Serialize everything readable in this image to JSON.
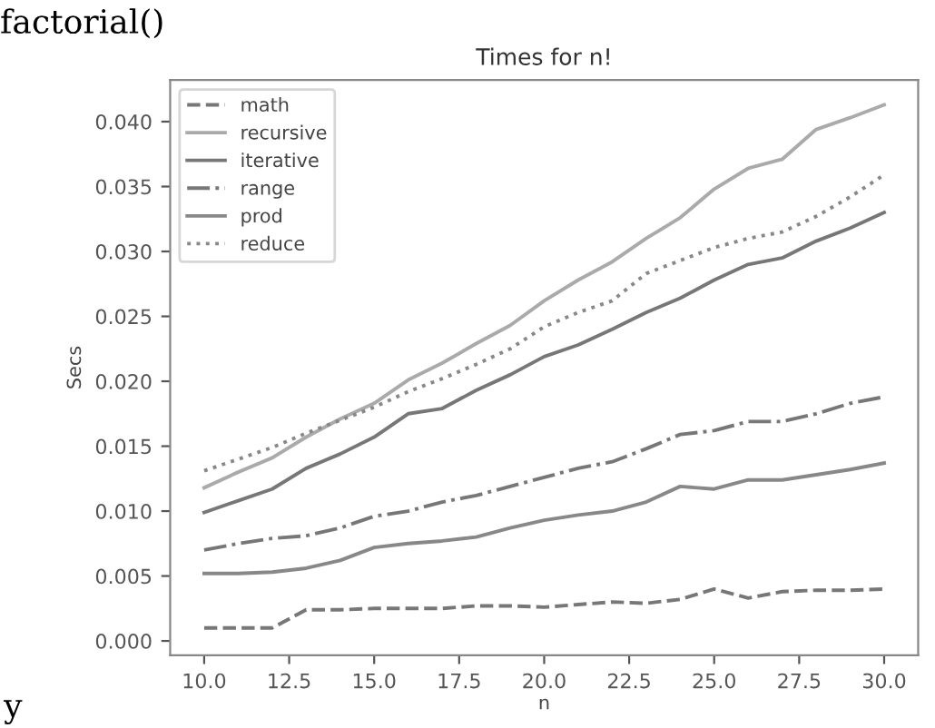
{
  "chart_data": {
    "type": "line",
    "title": "Times for n!",
    "xlabel": "n",
    "ylabel": "Secs",
    "annotations": [
      "factorial()",
      "y"
    ],
    "x": [
      10,
      11,
      12,
      13,
      14,
      15,
      16,
      17,
      18,
      19,
      20,
      21,
      22,
      23,
      24,
      25,
      26,
      27,
      28,
      29,
      30
    ],
    "series": [
      {
        "name": "math",
        "color": "#777777",
        "line_style": "dashed",
        "values": [
          0.001,
          0.001,
          0.001,
          0.0024,
          0.0024,
          0.0025,
          0.0025,
          0.0025,
          0.0027,
          0.0027,
          0.0026,
          0.0028,
          0.003,
          0.0029,
          0.0032,
          0.004,
          0.0033,
          0.0038,
          0.0039,
          0.0039,
          0.004
        ]
      },
      {
        "name": "recursive",
        "color": "#aaaaaa",
        "line_style": "solid",
        "values": [
          0.0118,
          0.013,
          0.0141,
          0.0157,
          0.0171,
          0.0183,
          0.0201,
          0.0214,
          0.0229,
          0.0243,
          0.0262,
          0.0278,
          0.0292,
          0.031,
          0.0326,
          0.0348,
          0.0364,
          0.0371,
          0.0394,
          0.0403,
          0.0413
        ]
      },
      {
        "name": "iterative",
        "color": "#777777",
        "line_style": "solid",
        "values": [
          0.0099,
          0.0108,
          0.0117,
          0.0133,
          0.0144,
          0.0157,
          0.0175,
          0.0179,
          0.0193,
          0.0205,
          0.0219,
          0.0228,
          0.024,
          0.0253,
          0.0264,
          0.0278,
          0.029,
          0.0295,
          0.0308,
          0.0318,
          0.033
        ]
      },
      {
        "name": "range",
        "color": "#777777",
        "line_style": "dashdot",
        "values": [
          0.007,
          0.0075,
          0.0079,
          0.0081,
          0.0087,
          0.0096,
          0.01,
          0.0107,
          0.0112,
          0.0119,
          0.0126,
          0.0133,
          0.0138,
          0.0148,
          0.0159,
          0.0162,
          0.0169,
          0.0169,
          0.0175,
          0.0183,
          0.0188
        ]
      },
      {
        "name": "prod",
        "color": "#888888",
        "line_style": "solid",
        "values": [
          0.0052,
          0.0052,
          0.0053,
          0.0056,
          0.0062,
          0.0072,
          0.0075,
          0.0077,
          0.008,
          0.0087,
          0.0093,
          0.0097,
          0.01,
          0.0107,
          0.0119,
          0.0117,
          0.0124,
          0.0124,
          0.0128,
          0.0132,
          0.0137
        ]
      },
      {
        "name": "reduce",
        "color": "#888888",
        "line_style": "dotted",
        "values": [
          0.0131,
          0.014,
          0.0149,
          0.016,
          0.017,
          0.018,
          0.0192,
          0.0202,
          0.0213,
          0.0225,
          0.0242,
          0.0253,
          0.0262,
          0.0283,
          0.0293,
          0.0303,
          0.031,
          0.0315,
          0.0327,
          0.0342,
          0.0359
        ]
      }
    ],
    "xlim": [
      9,
      31
    ],
    "ylim": [
      -0.0011,
      0.0432
    ],
    "xticks": [
      {
        "value": 10,
        "label": "10.0"
      },
      {
        "value": 12.5,
        "label": "12.5"
      },
      {
        "value": 15,
        "label": "15.0"
      },
      {
        "value": 17.5,
        "label": "17.5"
      },
      {
        "value": 20,
        "label": "20.0"
      },
      {
        "value": 22.5,
        "label": "22.5"
      },
      {
        "value": 25,
        "label": "25.0"
      },
      {
        "value": 27.5,
        "label": "27.5"
      },
      {
        "value": 30,
        "label": "30.0"
      }
    ],
    "yticks": [
      {
        "value": 0,
        "label": "0.000"
      },
      {
        "value": 0.005,
        "label": "0.005"
      },
      {
        "value": 0.01,
        "label": "0.010"
      },
      {
        "value": 0.015,
        "label": "0.015"
      },
      {
        "value": 0.02,
        "label": "0.020"
      },
      {
        "value": 0.025,
        "label": "0.025"
      },
      {
        "value": 0.03,
        "label": "0.030"
      },
      {
        "value": 0.035,
        "label": "0.035"
      },
      {
        "value": 0.04,
        "label": "0.040"
      }
    ],
    "legend": "top left",
    "grid": false,
    "marker": "none"
  }
}
